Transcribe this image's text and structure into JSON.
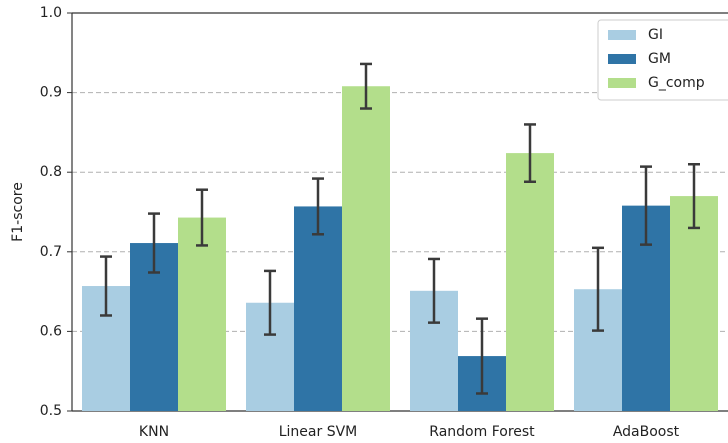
{
  "chart_data": {
    "type": "bar",
    "y_label": "F1-score",
    "categories": [
      "KNN",
      "Linear SVM",
      "Random Forest",
      "AdaBoost"
    ],
    "series": [
      {
        "name": "GI",
        "color": "#a9cde2",
        "values": [
          0.657,
          0.636,
          0.651,
          0.653
        ],
        "errors": [
          0.037,
          0.04,
          0.04,
          0.052
        ]
      },
      {
        "name": "GM",
        "color": "#2f74a6",
        "values": [
          0.711,
          0.757,
          0.569,
          0.758
        ],
        "errors": [
          0.037,
          0.035,
          0.047,
          0.049
        ]
      },
      {
        "name": "G_comp",
        "color": "#b3de8b",
        "values": [
          0.743,
          0.908,
          0.824,
          0.77
        ],
        "errors": [
          0.035,
          0.028,
          0.036,
          0.04
        ]
      }
    ],
    "ylim": [
      0.5,
      1.0
    ],
    "yticks": [
      0.5,
      0.6,
      0.7,
      0.8,
      0.9,
      {
        "value": 1.0,
        "label": "1.0"
      }
    ],
    "grid": true,
    "legend": "upper right"
  }
}
